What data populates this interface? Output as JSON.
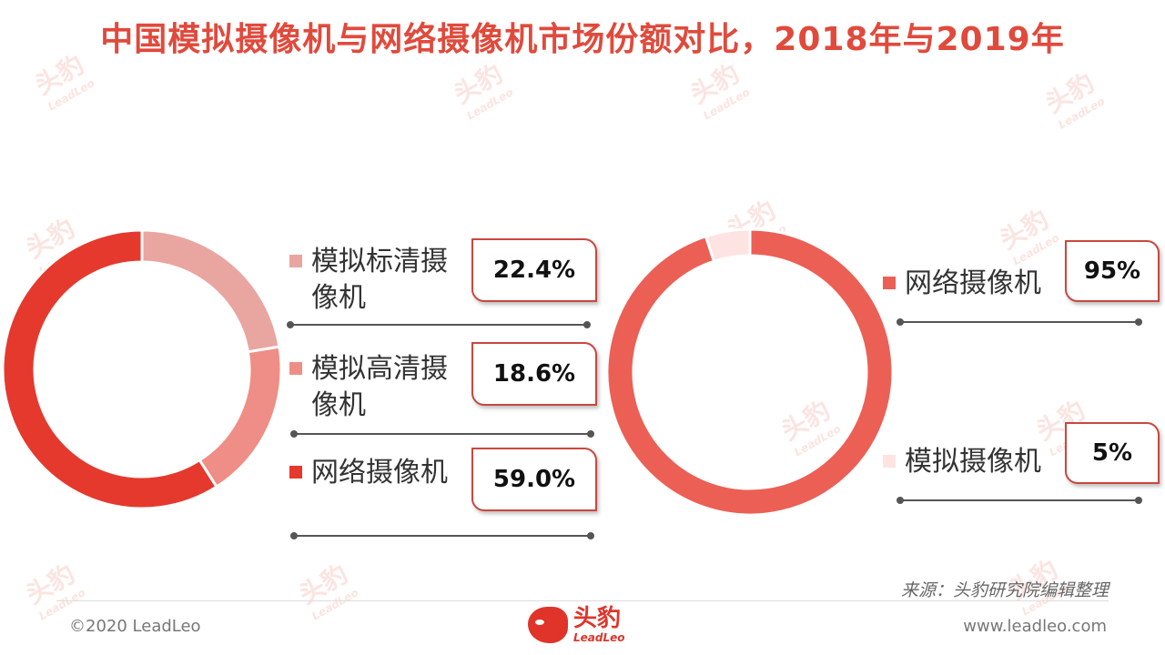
{
  "title": "中国模拟摄像机与网络摄像机市场份额对比，2018年与2019年",
  "watermark": {
    "cn": "头豹",
    "en": "LeadLeo"
  },
  "source": "来源：头豹研究院编辑整理",
  "footer": {
    "copyright": "©2020 LeadLeo",
    "website": "www.leadleo.com",
    "logo_cn": "头豹",
    "logo_en": "LeadLeo"
  },
  "chart_data": [
    {
      "type": "pie",
      "donut": true,
      "categories": [
        "模拟标清摄像机",
        "模拟高清摄像机",
        "网络摄像机"
      ],
      "values": [
        22.4,
        18.6,
        59.0
      ],
      "value_labels": [
        "22.4%",
        "18.6%",
        "59.0%"
      ],
      "colors": [
        "#e9a5a0",
        "#ef8e86",
        "#e5392d"
      ],
      "legend": "right"
    },
    {
      "type": "pie",
      "donut": true,
      "categories": [
        "网络摄像机",
        "模拟摄像机"
      ],
      "values": [
        95,
        5
      ],
      "value_labels": [
        "95%",
        "5%"
      ],
      "colors": [
        "#ec5f55",
        "#fde3e1"
      ],
      "legend": "right"
    }
  ]
}
